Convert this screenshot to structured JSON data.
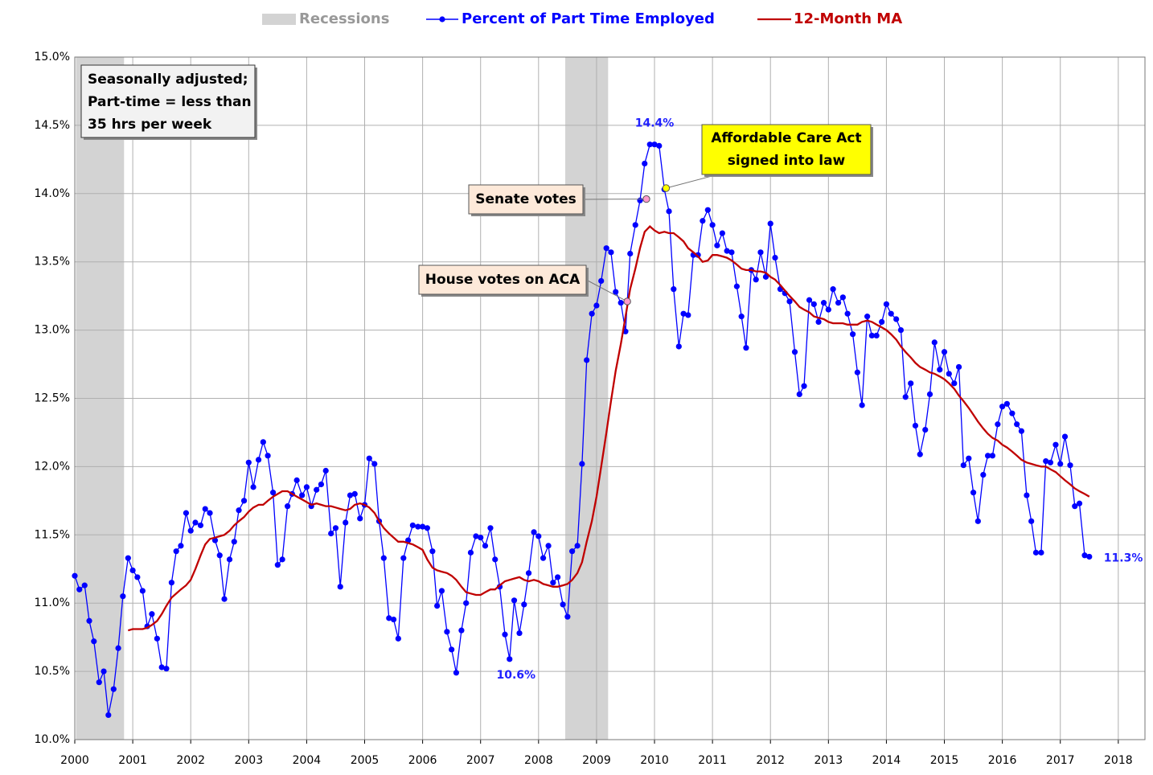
{
  "chart_data": {
    "type": "line",
    "legend": "top",
    "grid": true,
    "xlim": [
      2000,
      2018.46
    ],
    "xticks": [
      2000,
      2001,
      2002,
      2003,
      2004,
      2005,
      2006,
      2007,
      2008,
      2009,
      2010,
      2011,
      2012,
      2013,
      2014,
      2015,
      2016,
      2017,
      2018
    ],
    "ylim": [
      10,
      15
    ],
    "yticks": [
      {
        "value": 10,
        "label": "10.0%"
      },
      {
        "value": 10.5,
        "label": "10.5%"
      },
      {
        "value": 11,
        "label": "11.0%"
      },
      {
        "value": 11.5,
        "label": "11.5%"
      },
      {
        "value": 12,
        "label": "12.0%"
      },
      {
        "value": 12.5,
        "label": "12.5%"
      },
      {
        "value": 13,
        "label": "13.0%"
      },
      {
        "value": 13.5,
        "label": "13.5%"
      },
      {
        "value": 14,
        "label": "14.0%"
      },
      {
        "value": 14.5,
        "label": "14.5%"
      },
      {
        "value": 15,
        "label": "15.0%"
      }
    ],
    "recessions": {
      "name": "Recessions",
      "color": "#d3d3d3",
      "spans": [
        [
          2000.02,
          2000.85
        ],
        [
          2008.46,
          2009.2
        ]
      ]
    },
    "x": [
      2000,
      2000.08,
      2000.17,
      2000.25,
      2000.33,
      2000.42,
      2000.5,
      2000.58,
      2000.67,
      2000.75,
      2000.83,
      2000.92,
      2001,
      2001.08,
      2001.17,
      2001.25,
      2001.33,
      2001.42,
      2001.5,
      2001.58,
      2001.67,
      2001.75,
      2001.83,
      2001.92,
      2002,
      2002.08,
      2002.17,
      2002.25,
      2002.33,
      2002.42,
      2002.5,
      2002.58,
      2002.67,
      2002.75,
      2002.83,
      2002.92,
      2003,
      2003.08,
      2003.17,
      2003.25,
      2003.33,
      2003.42,
      2003.5,
      2003.58,
      2003.67,
      2003.75,
      2003.83,
      2003.92,
      2004,
      2004.08,
      2004.17,
      2004.25,
      2004.33,
      2004.42,
      2004.5,
      2004.58,
      2004.67,
      2004.75,
      2004.83,
      2004.92,
      2005,
      2005.08,
      2005.17,
      2005.25,
      2005.33,
      2005.42,
      2005.5,
      2005.58,
      2005.67,
      2005.75,
      2005.83,
      2005.92,
      2006,
      2006.08,
      2006.17,
      2006.25,
      2006.33,
      2006.42,
      2006.5,
      2006.58,
      2006.67,
      2006.75,
      2006.83,
      2006.92,
      2007,
      2007.08,
      2007.17,
      2007.25,
      2007.33,
      2007.42,
      2007.5,
      2007.58,
      2007.67,
      2007.75,
      2007.83,
      2007.92,
      2008,
      2008.08,
      2008.17,
      2008.25,
      2008.33,
      2008.42,
      2008.5,
      2008.58,
      2008.67,
      2008.75,
      2008.83,
      2008.92,
      2009,
      2009.08,
      2009.17,
      2009.25,
      2009.33,
      2009.42,
      2009.5,
      2009.58,
      2009.67,
      2009.75,
      2009.83,
      2009.92,
      2010,
      2010.08,
      2010.17,
      2010.25,
      2010.33,
      2010.42,
      2010.5,
      2010.58,
      2010.67,
      2010.75,
      2010.83,
      2010.92,
      2011,
      2011.08,
      2011.17,
      2011.25,
      2011.33,
      2011.42,
      2011.5,
      2011.58,
      2011.67,
      2011.75,
      2011.83,
      2011.92,
      2012,
      2012.08,
      2012.17,
      2012.25,
      2012.33,
      2012.42,
      2012.5,
      2012.58,
      2012.67,
      2012.75,
      2012.83,
      2012.92,
      2013,
      2013.08,
      2013.17,
      2013.25,
      2013.33,
      2013.42,
      2013.5,
      2013.58,
      2013.67,
      2013.75,
      2013.83,
      2013.92,
      2014,
      2014.08,
      2014.17,
      2014.25,
      2014.33,
      2014.42,
      2014.5,
      2014.58,
      2014.67,
      2014.75,
      2014.83,
      2014.92,
      2015,
      2015.08,
      2015.17,
      2015.25,
      2015.33,
      2015.42,
      2015.5,
      2015.58,
      2015.67,
      2015.75,
      2015.83,
      2015.92,
      2016,
      2016.08,
      2016.17,
      2016.25,
      2016.33,
      2016.42,
      2016.5,
      2016.58,
      2016.67,
      2016.75,
      2016.83,
      2016.92,
      2017,
      2017.08,
      2017.17,
      2017.25,
      2017.33,
      2017.42,
      2017.5
    ],
    "series": [
      {
        "name": "Percent of Part Time Employed",
        "color": "#0000ff",
        "markers": true,
        "values": [
          11.2,
          11.1,
          11.13,
          10.87,
          10.72,
          10.42,
          10.5,
          10.18,
          10.37,
          10.67,
          11.05,
          11.33,
          11.24,
          11.19,
          11.09,
          10.83,
          10.92,
          10.74,
          10.53,
          10.52,
          11.15,
          11.38,
          11.42,
          11.66,
          11.53,
          11.59,
          11.57,
          11.69,
          11.66,
          11.46,
          11.35,
          11.03,
          11.32,
          11.45,
          11.68,
          11.75,
          12.03,
          11.85,
          12.05,
          12.18,
          12.08,
          11.81,
          11.28,
          11.32,
          11.71,
          11.8,
          11.9,
          11.79,
          11.85,
          11.71,
          11.83,
          11.87,
          11.97,
          11.51,
          11.55,
          11.12,
          11.59,
          11.79,
          11.8,
          11.62,
          11.72,
          12.06,
          12.02,
          11.6,
          11.33,
          10.89,
          10.88,
          10.74,
          11.33,
          11.46,
          11.57,
          11.56,
          11.56,
          11.55,
          11.38,
          10.98,
          11.09,
          10.79,
          10.66,
          10.49,
          10.8,
          11.0,
          11.37,
          11.49,
          11.48,
          11.42,
          11.55,
          11.32,
          11.12,
          10.77,
          10.59,
          11.02,
          10.78,
          10.99,
          11.22,
          11.52,
          11.49,
          11.33,
          11.42,
          11.15,
          11.19,
          10.99,
          10.9,
          11.38,
          11.42,
          12.02,
          12.78,
          13.12,
          13.18,
          13.36,
          13.6,
          13.57,
          13.28,
          13.2,
          12.99,
          13.56,
          13.77,
          13.95,
          14.22,
          14.36,
          14.36,
          14.35,
          14.03,
          13.87,
          13.3,
          12.88,
          13.12,
          13.11,
          13.55,
          13.55,
          13.8,
          13.88,
          13.77,
          13.62,
          13.71,
          13.58,
          13.57,
          13.32,
          13.1,
          12.87,
          13.44,
          13.37,
          13.57,
          13.39,
          13.78,
          13.53,
          13.3,
          13.27,
          13.21,
          12.84,
          12.53,
          12.59,
          13.22,
          13.19,
          13.06,
          13.2,
          13.15,
          13.3,
          13.2,
          13.24,
          13.12,
          12.97,
          12.69,
          12.45,
          13.1,
          12.96,
          12.96,
          13.06,
          13.19,
          13.12,
          13.08,
          13.0,
          12.51,
          12.61,
          12.3,
          12.09,
          12.27,
          12.53,
          12.91,
          12.71,
          12.84,
          12.68,
          12.61,
          12.73,
          12.01,
          12.06,
          11.81,
          11.6,
          11.94,
          12.08,
          12.08,
          12.31,
          12.44,
          12.46,
          12.39,
          12.31,
          12.26,
          11.79,
          11.6,
          11.37,
          11.37,
          12.04,
          12.03,
          12.16,
          12.02,
          12.22,
          12.01,
          11.71,
          11.73,
          11.35,
          11.34
        ]
      },
      {
        "name": "12-Month MA",
        "color": "#c00000",
        "markers": false,
        "values": [
          null,
          null,
          null,
          null,
          null,
          null,
          null,
          null,
          null,
          null,
          null,
          10.8,
          10.81,
          10.81,
          10.81,
          10.82,
          10.84,
          10.87,
          10.92,
          10.98,
          11.04,
          11.07,
          11.1,
          11.13,
          11.17,
          11.25,
          11.35,
          11.43,
          11.47,
          11.48,
          11.49,
          11.5,
          11.53,
          11.57,
          11.6,
          11.63,
          11.67,
          11.7,
          11.72,
          11.72,
          11.75,
          11.78,
          11.8,
          11.82,
          11.82,
          11.8,
          11.78,
          11.76,
          11.74,
          11.72,
          11.73,
          11.72,
          11.71,
          11.71,
          11.7,
          11.69,
          11.68,
          11.69,
          11.72,
          11.73,
          11.72,
          11.7,
          11.66,
          11.6,
          11.55,
          11.51,
          11.48,
          11.45,
          11.45,
          11.44,
          11.43,
          11.41,
          11.39,
          11.32,
          11.26,
          11.24,
          11.23,
          11.22,
          11.2,
          11.17,
          11.12,
          11.08,
          11.07,
          11.06,
          11.06,
          11.08,
          11.1,
          11.1,
          11.13,
          11.16,
          11.17,
          11.18,
          11.19,
          11.17,
          11.16,
          11.17,
          11.16,
          11.14,
          11.13,
          11.12,
          11.12,
          11.13,
          11.14,
          11.17,
          11.22,
          11.3,
          11.45,
          11.6,
          11.78,
          12.0,
          12.25,
          12.48,
          12.7,
          12.9,
          13.1,
          13.3,
          13.45,
          13.6,
          13.72,
          13.76,
          13.73,
          13.71,
          13.72,
          13.71,
          13.71,
          13.68,
          13.65,
          13.6,
          13.57,
          13.54,
          13.5,
          13.51,
          13.55,
          13.55,
          13.54,
          13.53,
          13.51,
          13.48,
          13.45,
          13.44,
          13.44,
          13.43,
          13.43,
          13.42,
          13.39,
          13.37,
          13.33,
          13.29,
          13.25,
          13.21,
          13.17,
          13.15,
          13.13,
          13.1,
          13.09,
          13.08,
          13.06,
          13.05,
          13.05,
          13.05,
          13.04,
          13.04,
          13.04,
          13.06,
          13.07,
          13.06,
          13.04,
          13.02,
          13.0,
          12.97,
          12.93,
          12.88,
          12.84,
          12.8,
          12.76,
          12.73,
          12.71,
          12.69,
          12.68,
          12.66,
          12.64,
          12.61,
          12.57,
          12.52,
          12.48,
          12.43,
          12.38,
          12.33,
          12.28,
          12.24,
          12.21,
          12.19,
          12.16,
          12.14,
          12.11,
          12.08,
          12.05,
          12.03,
          12.02,
          12.01,
          12.0,
          12.0,
          11.98,
          11.96,
          11.93,
          11.9,
          11.87,
          11.84,
          11.82,
          11.8,
          11.78
        ]
      }
    ],
    "point_labels": [
      {
        "text": "14.4%",
        "x": 2010.0,
        "y": 14.36
      },
      {
        "text": "10.6%",
        "x": 2007.5,
        "y": 10.59
      },
      {
        "text": "11.3%",
        "x": 2017.5,
        "y": 11.34
      }
    ],
    "callouts": [
      {
        "lines": [
          "Senate votes"
        ],
        "x": 2009.86,
        "y": 13.96,
        "fill": "#fde9d9",
        "marker": "#ff99cc"
      },
      {
        "lines": [
          "House votes on ACA"
        ],
        "x": 2009.53,
        "y": 13.21,
        "fill": "#fde9d9",
        "marker": "#ff99cc"
      },
      {
        "lines": [
          "Affordable Care Act",
          "signed into law"
        ],
        "x": 2010.2,
        "y": 14.04,
        "fill": "#ffff00",
        "marker": "#ffff00"
      }
    ],
    "note": [
      "Seasonally adjusted;",
      "Part-time = less than",
      "35 hrs per week"
    ]
  }
}
